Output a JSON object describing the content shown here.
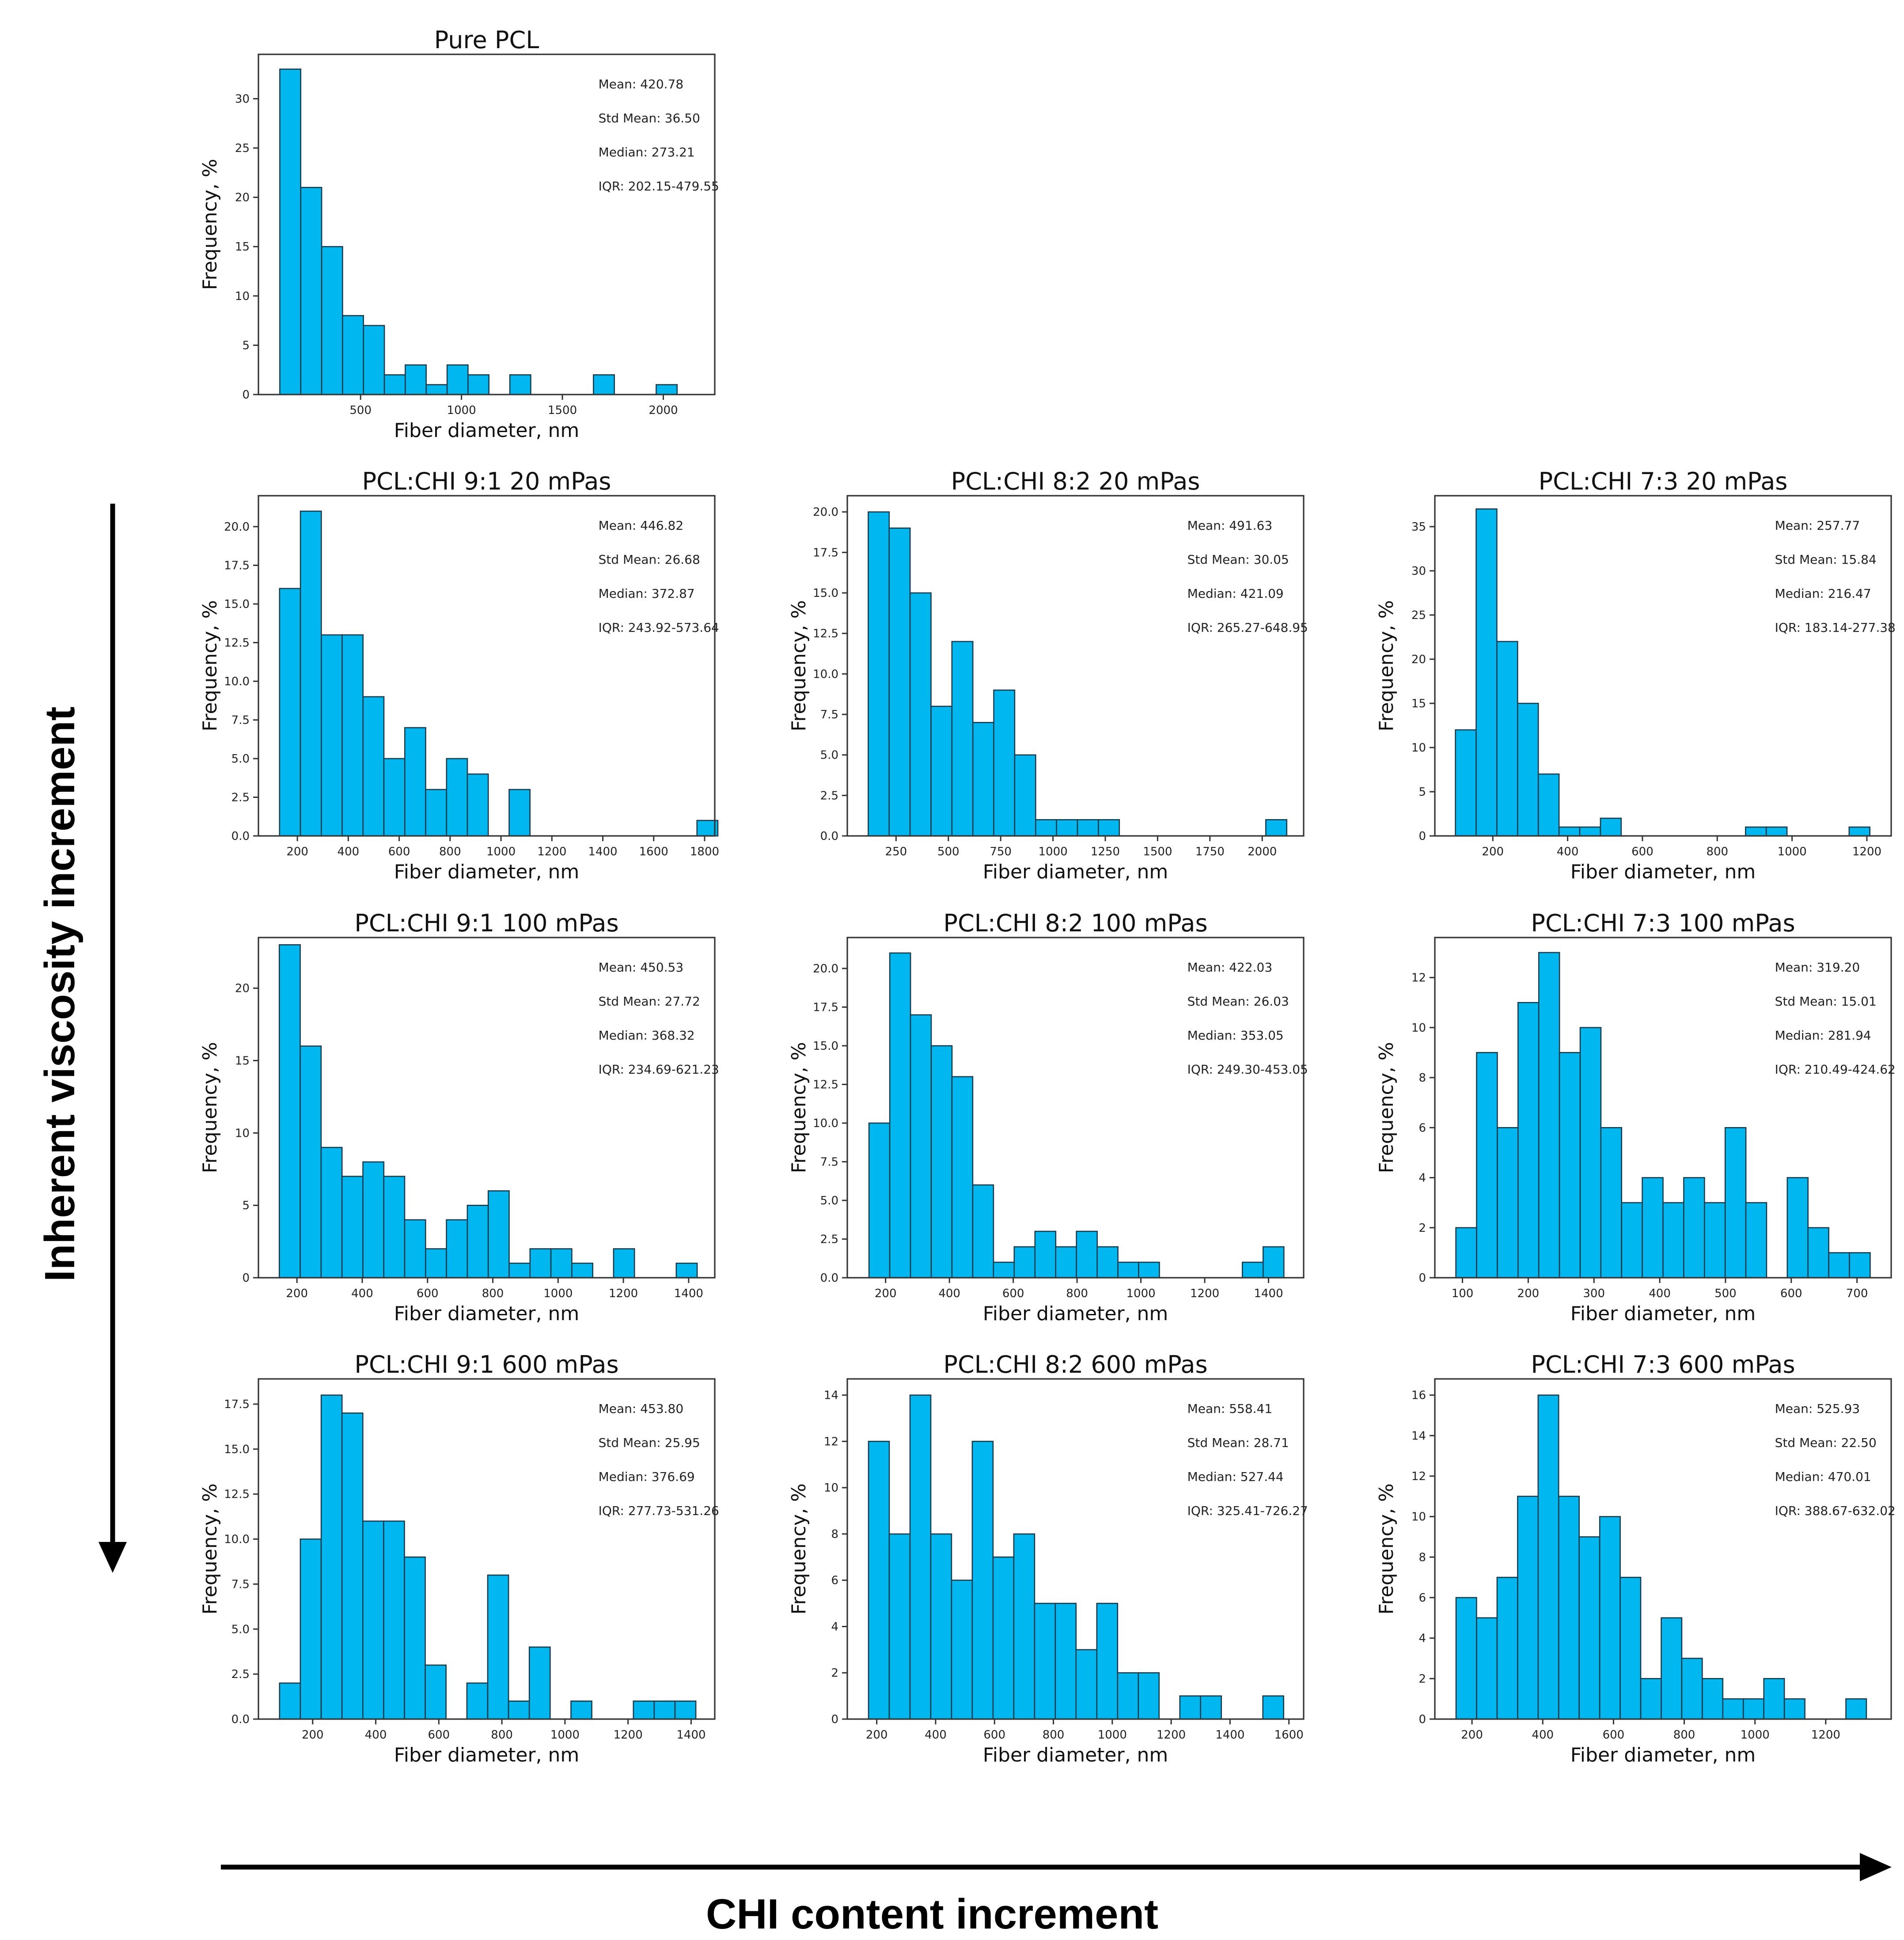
{
  "figure": {
    "bar_color": "#00b8ef",
    "edge_color": "#1a3a4a",
    "y_axis_arrow_label": "Inherent viscosity increment",
    "x_axis_arrow_label": "CHI content increment"
  },
  "chart_data": [
    {
      "type": "bar",
      "title": "Pure PCL",
      "xlabel": "Fiber diameter, nm",
      "ylabel": "Frequency, %",
      "xlim": [
        -6,
        2255
      ],
      "ylim": [
        0,
        34.5
      ],
      "xticks": [
        500,
        1000,
        1500,
        2000
      ],
      "yticks": [
        0,
        5,
        10,
        15,
        20,
        25,
        30
      ],
      "bin_start": 100,
      "bin_width": 103.6,
      "values": [
        33,
        21,
        15,
        8,
        7,
        2,
        3,
        1,
        3,
        2,
        0,
        2,
        0,
        0,
        0,
        2,
        0,
        0,
        1
      ],
      "stats": [
        "Mean: 420.78",
        "Std Mean: 36.50",
        "Median: 273.21",
        "IQR: 202.15-479.55"
      ]
    },
    {
      "type": "bar",
      "title": "PCL:CHI 9:1 20 mPas",
      "xlabel": "Fiber diameter, nm",
      "ylabel": "Frequency, %",
      "xlim": [
        47,
        1840
      ],
      "ylim": [
        0,
        22
      ],
      "xticks": [
        200,
        400,
        600,
        800,
        1000,
        1200,
        1400,
        1600,
        1800
      ],
      "yticks": [
        0.0,
        2.5,
        5.0,
        7.5,
        10.0,
        12.5,
        15.0,
        17.5,
        20.0
      ],
      "ytick_decimals": 1,
      "bin_start": 130,
      "bin_width": 82,
      "values": [
        16,
        21,
        13,
        13,
        9,
        5,
        7,
        3,
        5,
        4,
        0,
        3,
        0,
        0,
        0,
        0,
        0,
        0,
        0,
        0,
        1
      ],
      "stats": [
        "Mean: 446.82",
        "Std Mean: 26.68",
        "Median: 372.87",
        "IQR: 243.92-573.64"
      ]
    },
    {
      "type": "bar",
      "title": "PCL:CHI 8:2 20 mPas",
      "xlabel": "Fiber diameter, nm",
      "ylabel": "Frequency, %",
      "xlim": [
        17,
        2198
      ],
      "ylim": [
        0,
        21
      ],
      "xticks": [
        250,
        500,
        750,
        1000,
        1250,
        1500,
        1750,
        2000
      ],
      "yticks": [
        0.0,
        2.5,
        5.0,
        7.5,
        10.0,
        12.5,
        15.0,
        17.5,
        20.0
      ],
      "ytick_decimals": 1,
      "bin_start": 117,
      "bin_width": 100,
      "values": [
        20,
        19,
        15,
        8,
        12,
        7,
        9,
        5,
        1,
        1,
        1,
        1,
        0,
        0,
        0,
        0,
        0,
        0,
        0,
        1
      ],
      "stats": [
        "Mean: 491.63",
        "Std Mean: 30.05",
        "Median: 421.09",
        "IQR: 265.27-648.95"
      ]
    },
    {
      "type": "bar",
      "title": "PCL:CHI 7:3 20 mPas",
      "xlabel": "Fiber diameter, nm",
      "ylabel": "Frequency, %",
      "xlim": [
        45,
        1265
      ],
      "ylim": [
        0,
        38.5
      ],
      "xticks": [
        200,
        400,
        600,
        800,
        1000,
        1200
      ],
      "yticks": [
        0,
        5,
        10,
        15,
        20,
        25,
        30,
        35
      ],
      "bin_start": 100,
      "bin_width": 55.4,
      "values": [
        12,
        37,
        22,
        15,
        7,
        1,
        1,
        2,
        0,
        0,
        0,
        0,
        0,
        0,
        1,
        1,
        0,
        0,
        0,
        1
      ],
      "stats": [
        "Mean: 257.77",
        "Std Mean: 15.84",
        "Median: 216.47",
        "IQR: 183.14-277.38"
      ]
    },
    {
      "type": "bar",
      "title": "PCL:CHI 9:1 100 mPas",
      "xlabel": "Fiber diameter, nm",
      "ylabel": "Frequency, %",
      "xlim": [
        82,
        1480
      ],
      "ylim": [
        0,
        23.5
      ],
      "xticks": [
        200,
        400,
        600,
        800,
        1000,
        1200,
        1400
      ],
      "yticks": [
        0,
        5,
        10,
        15,
        20
      ],
      "bin_start": 146,
      "bin_width": 64,
      "values": [
        23,
        16,
        9,
        7,
        8,
        7,
        4,
        2,
        4,
        5,
        6,
        1,
        2,
        2,
        1,
        0,
        2,
        0,
        0,
        1
      ],
      "stats": [
        "Mean: 450.53",
        "Std Mean: 27.72",
        "Median: 368.32",
        "IQR: 234.69-621.23"
      ]
    },
    {
      "type": "bar",
      "title": "PCL:CHI 8:2 100 mPas",
      "xlabel": "Fiber diameter, nm",
      "ylabel": "Frequency, %",
      "xlim": [
        80,
        1510
      ],
      "ylim": [
        0,
        22
      ],
      "xticks": [
        200,
        400,
        600,
        800,
        1000,
        1200,
        1400
      ],
      "yticks": [
        0.0,
        2.5,
        5.0,
        7.5,
        10.0,
        12.5,
        15.0,
        17.5,
        20.0
      ],
      "ytick_decimals": 1,
      "bin_start": 148,
      "bin_width": 65,
      "values": [
        10,
        21,
        17,
        15,
        13,
        6,
        1,
        2,
        3,
        2,
        3,
        2,
        1,
        1,
        0,
        0,
        0,
        0,
        1,
        2
      ],
      "stats": [
        "Mean: 422.03",
        "Std Mean: 26.03",
        "Median: 353.05",
        "IQR: 249.30-453.05"
      ]
    },
    {
      "type": "bar",
      "title": "PCL:CHI 7:3 100 mPas",
      "xlabel": "Fiber diameter, nm",
      "ylabel": "Frequency, %",
      "xlim": [
        58,
        752
      ],
      "ylim": [
        0,
        13.6
      ],
      "xticks": [
        100,
        200,
        300,
        400,
        500,
        600,
        700
      ],
      "yticks": [
        0,
        2,
        4,
        6,
        8,
        10,
        12
      ],
      "bin_start": 90,
      "bin_width": 31.5,
      "values": [
        2,
        9,
        6,
        11,
        13,
        9,
        10,
        6,
        3,
        4,
        3,
        4,
        3,
        6,
        3,
        0,
        4,
        2,
        1,
        1
      ],
      "stats": [
        "Mean: 319.20",
        "Std Mean: 15.01",
        "Median: 281.94",
        "IQR: 210.49-424.62"
      ]
    },
    {
      "type": "bar",
      "title": "PCL:CHI 9:1 600 mPas",
      "xlabel": "Fiber diameter, nm",
      "ylabel": "Frequency, %",
      "xlim": [
        28,
        1475
      ],
      "ylim": [
        0,
        18.9
      ],
      "xticks": [
        200,
        400,
        600,
        800,
        1000,
        1200,
        1400
      ],
      "yticks": [
        0.0,
        2.5,
        5.0,
        7.5,
        10.0,
        12.5,
        15.0,
        17.5
      ],
      "ytick_decimals": 1,
      "bin_start": 95,
      "bin_width": 66,
      "values": [
        2,
        10,
        18,
        17,
        11,
        11,
        9,
        3,
        0,
        2,
        8,
        1,
        4,
        0,
        1,
        0,
        0,
        1,
        1,
        1
      ],
      "stats": [
        "Mean: 453.80",
        "Std Mean: 25.95",
        "Median: 376.69",
        "IQR: 277.73-531.26"
      ]
    },
    {
      "type": "bar",
      "title": "PCL:CHI 8:2 600 mPas",
      "xlabel": "Fiber diameter, nm",
      "ylabel": "Frequency, %",
      "xlim": [
        100,
        1650
      ],
      "ylim": [
        0,
        14.7
      ],
      "xticks": [
        200,
        400,
        600,
        800,
        1000,
        1200,
        1400,
        1600
      ],
      "yticks": [
        0,
        2,
        4,
        6,
        8,
        10,
        12,
        14
      ],
      "bin_start": 172,
      "bin_width": 70.5,
      "values": [
        12,
        8,
        14,
        8,
        6,
        12,
        7,
        8,
        5,
        5,
        3,
        5,
        2,
        2,
        0,
        1,
        1,
        0,
        0,
        1
      ],
      "stats": [
        "Mean: 558.41",
        "Std Mean: 28.71",
        "Median: 527.44",
        "IQR: 325.41-726.27"
      ]
    },
    {
      "type": "bar",
      "title": "PCL:CHI 7:3 600 mPas",
      "xlabel": "Fiber diameter, nm",
      "ylabel": "Frequency, %",
      "xlim": [
        95,
        1385
      ],
      "ylim": [
        0,
        16.8
      ],
      "xticks": [
        200,
        400,
        600,
        800,
        1000,
        1200
      ],
      "yticks": [
        0,
        2,
        4,
        6,
        8,
        10,
        12,
        14,
        16
      ],
      "bin_start": 155,
      "bin_width": 58,
      "values": [
        6,
        5,
        7,
        11,
        16,
        11,
        9,
        10,
        7,
        2,
        5,
        3,
        2,
        1,
        1,
        2,
        1,
        0,
        0,
        1
      ],
      "stats": [
        "Mean: 525.93",
        "Std Mean: 22.50",
        "Median: 470.01",
        "IQR: 388.67-632.02"
      ]
    }
  ]
}
